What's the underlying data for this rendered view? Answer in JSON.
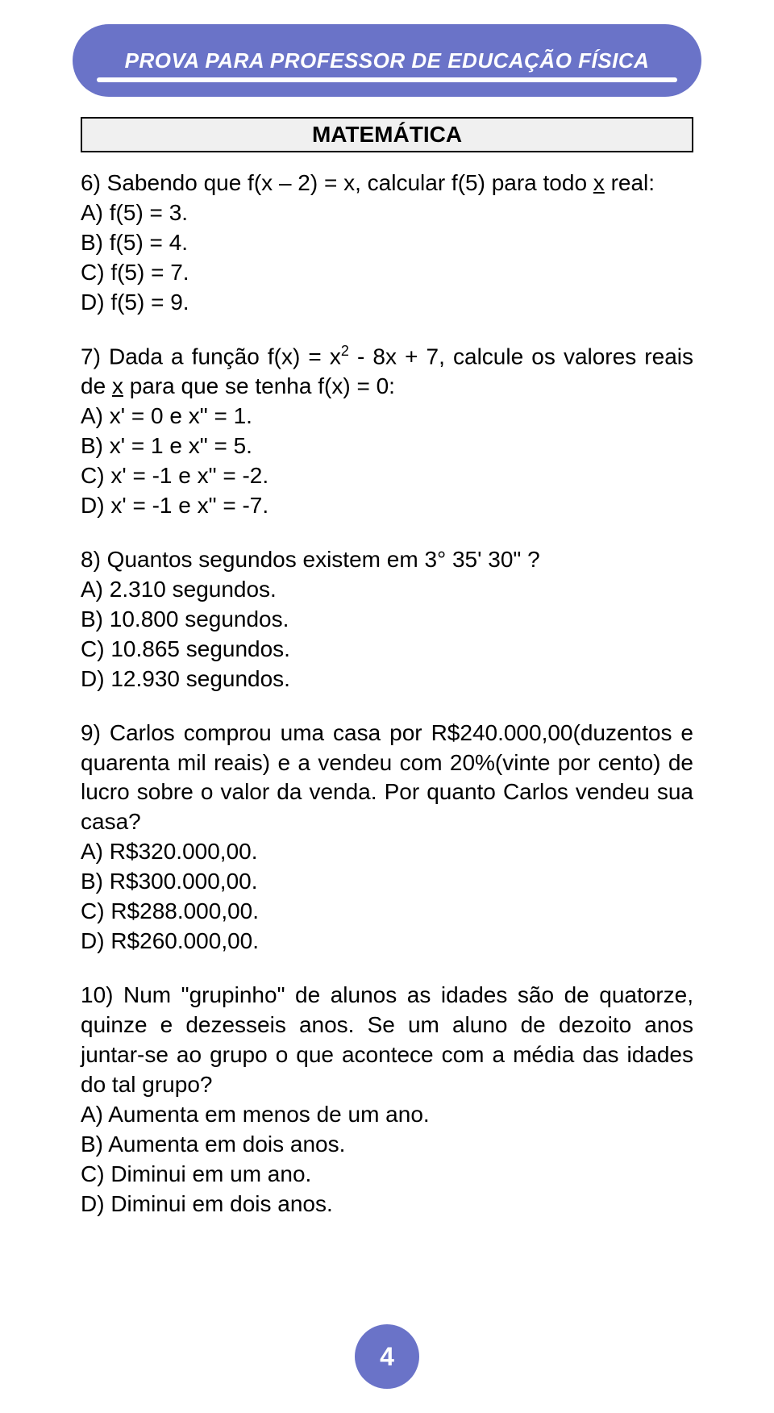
{
  "header": {
    "title": "PROVA PARA PROFESSOR DE EDUCAÇÃO FÍSICA",
    "banner_color": "#6a73c8",
    "title_color": "#ffffff"
  },
  "section": {
    "label": "MATEMÁTICA"
  },
  "questions": {
    "q6": {
      "stem_before": "6) Sabendo que f(x – 2) = x, calcular f(5) para todo ",
      "stem_underlined": "x",
      "stem_after": " real:",
      "a": "A) f(5) = 3.",
      "b": "B) f(5) = 4.",
      "c": "C) f(5) = 7.",
      "d": "D) f(5) = 9."
    },
    "q7": {
      "stem_p1": "7) Dada a função f(x) = x",
      "stem_sup": "2",
      "stem_p2": " - 8x + 7, calcule os valores reais de ",
      "stem_underlined": "x",
      "stem_p3": " para que se tenha f(x) = 0:",
      "a": "A) x' = 0 e x\" = 1.",
      "b": "B) x' = 1 e x\" = 5.",
      "c": "C) x' = -1 e x\" = -2.",
      "d": "D) x' = -1 e x\" = -7."
    },
    "q8": {
      "stem": "8) Quantos segundos existem em 3° 35' 30\" ?",
      "a": "A) 2.310 segundos.",
      "b": "B) 10.800 segundos.",
      "c": "C) 10.865 segundos.",
      "d": "D) 12.930 segundos."
    },
    "q9": {
      "stem": "9) Carlos comprou uma casa por R$240.000,00(duzentos e quarenta mil reais) e a vendeu com 20%(vinte por cento) de lucro sobre o valor da venda. Por quanto Carlos vendeu sua casa?",
      "a": "A) R$320.000,00.",
      "b": "B) R$300.000,00.",
      "c": "C) R$288.000,00.",
      "d": "D) R$260.000,00."
    },
    "q10": {
      "stem": "10) Num \"grupinho\" de alunos as idades são de quatorze, quinze e dezesseis anos. Se um aluno de dezoito anos juntar-se ao grupo o que acontece com a média das idades do tal grupo?",
      "a": "A) Aumenta em menos de um ano.",
      "b": "B) Aumenta em dois anos.",
      "c": "C) Diminui em um ano.",
      "d": "D) Diminui em dois anos."
    }
  },
  "page": {
    "number": "4",
    "badge_color": "#6a73c8"
  }
}
